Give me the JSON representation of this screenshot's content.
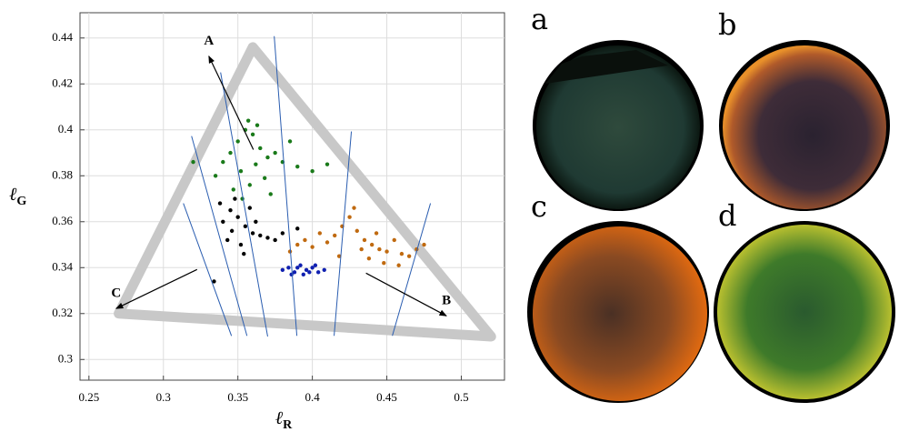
{
  "chart_data": {
    "type": "scatter",
    "xlabel": {
      "symbol": "ℓ",
      "sub": "R"
    },
    "ylabel": {
      "symbol": "ℓ",
      "sub": "G"
    },
    "xlim": [
      0.244,
      0.529
    ],
    "ylim": [
      0.291,
      0.451
    ],
    "xticks": [
      0.25,
      0.3,
      0.35,
      0.4,
      0.45,
      0.5
    ],
    "yticks": [
      0.3,
      0.32,
      0.34,
      0.36,
      0.38,
      0.4,
      0.42,
      0.44
    ],
    "grid": true,
    "series": [
      {
        "color": "#1a7a1a",
        "x": [
          0.345,
          0.35,
          0.355,
          0.36,
          0.365,
          0.37,
          0.352,
          0.358,
          0.362,
          0.34,
          0.335,
          0.347,
          0.368,
          0.375,
          0.38,
          0.39,
          0.4,
          0.41,
          0.357,
          0.363,
          0.32,
          0.353,
          0.372,
          0.385
        ],
        "y": [
          0.39,
          0.395,
          0.4,
          0.398,
          0.392,
          0.388,
          0.382,
          0.376,
          0.385,
          0.386,
          0.38,
          0.374,
          0.379,
          0.39,
          0.386,
          0.384,
          0.382,
          0.385,
          0.404,
          0.402,
          0.386,
          0.37,
          0.372,
          0.395
        ]
      },
      {
        "color": "#000000",
        "x": [
          0.34,
          0.345,
          0.35,
          0.355,
          0.36,
          0.348,
          0.352,
          0.343,
          0.358,
          0.365,
          0.37,
          0.375,
          0.38,
          0.39,
          0.338,
          0.346,
          0.354,
          0.362,
          0.334
        ],
        "y": [
          0.36,
          0.365,
          0.362,
          0.358,
          0.355,
          0.37,
          0.35,
          0.352,
          0.366,
          0.354,
          0.353,
          0.352,
          0.355,
          0.357,
          0.368,
          0.356,
          0.346,
          0.36,
          0.334
        ]
      },
      {
        "color": "#1020b0",
        "x": [
          0.38,
          0.384,
          0.388,
          0.392,
          0.396,
          0.4,
          0.404,
          0.408,
          0.386,
          0.394,
          0.402,
          0.39,
          0.398
        ],
        "y": [
          0.339,
          0.34,
          0.338,
          0.341,
          0.339,
          0.34,
          0.338,
          0.339,
          0.337,
          0.337,
          0.341,
          0.34,
          0.338
        ]
      },
      {
        "color": "#c06a10",
        "x": [
          0.39,
          0.395,
          0.4,
          0.41,
          0.415,
          0.42,
          0.425,
          0.43,
          0.435,
          0.44,
          0.445,
          0.45,
          0.455,
          0.46,
          0.465,
          0.47,
          0.475,
          0.428,
          0.438,
          0.448,
          0.418,
          0.433,
          0.443,
          0.458,
          0.405,
          0.385
        ],
        "y": [
          0.35,
          0.352,
          0.349,
          0.351,
          0.354,
          0.358,
          0.362,
          0.356,
          0.352,
          0.35,
          0.348,
          0.347,
          0.352,
          0.346,
          0.345,
          0.348,
          0.35,
          0.366,
          0.344,
          0.342,
          0.345,
          0.348,
          0.355,
          0.341,
          0.355,
          0.347
        ]
      }
    ],
    "triangle": {
      "color": "#c8c8c8",
      "x": [
        0.36,
        0.27,
        0.52
      ],
      "y": [
        0.436,
        0.32,
        0.31
      ]
    },
    "lines": {
      "color": "#2a5db0",
      "segments": [
        {
          "x": [
            0.3134,
            0.3457
          ],
          "y": [
            0.368,
            0.3103
          ]
        },
        {
          "x": [
            0.3189,
            0.3561
          ],
          "y": [
            0.3973,
            0.3103
          ]
        },
        {
          "x": [
            0.3384,
            0.37
          ],
          "y": [
            0.425,
            0.31
          ]
        },
        {
          "x": [
            0.3744,
            0.3896
          ],
          "y": [
            0.4408,
            0.3103
          ]
        },
        {
          "x": [
            0.4262,
            0.4146
          ],
          "y": [
            0.3993,
            0.3103
          ]
        },
        {
          "x": [
            0.4793,
            0.4537
          ],
          "y": [
            0.368,
            0.3103
          ]
        }
      ]
    },
    "annotations": [
      {
        "text": "A",
        "from": [
          0.3604,
          0.3914
        ],
        "to": [
          0.3305,
          0.4321
        ]
      },
      {
        "text": "B",
        "from": [
          0.436,
          0.3376
        ],
        "to": [
          0.49,
          0.319
        ]
      },
      {
        "text": "C",
        "from": [
          0.3226,
          0.3392
        ],
        "to": [
          0.2683,
          0.3222
        ]
      }
    ]
  },
  "panels": [
    "a",
    "b",
    "c",
    "d"
  ]
}
